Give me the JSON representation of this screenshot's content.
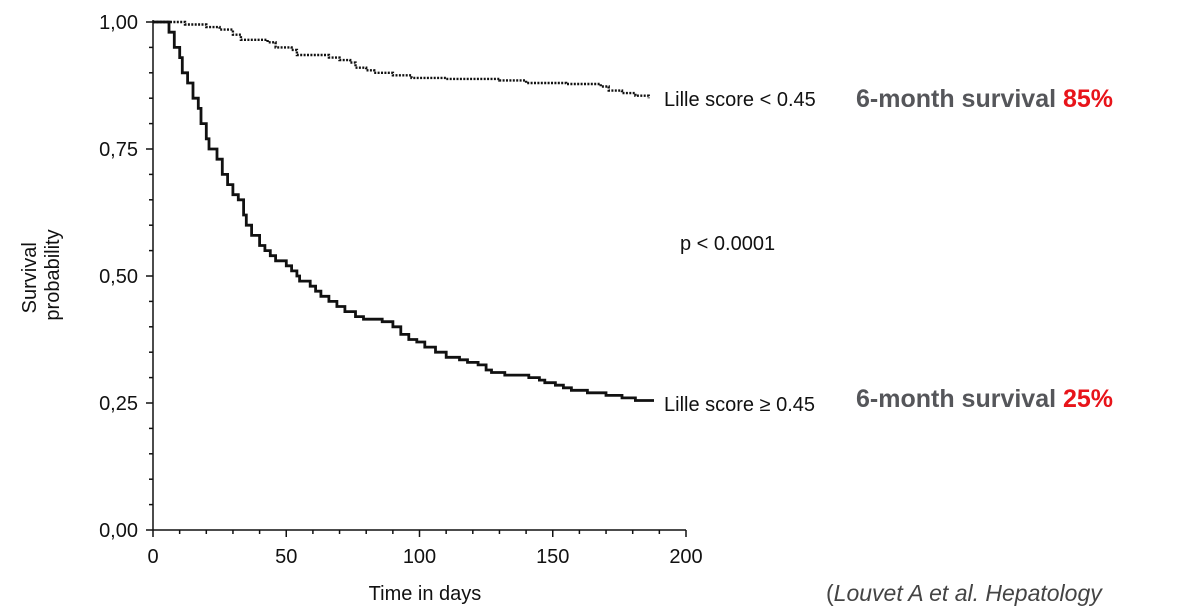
{
  "chart_data": {
    "type": "line",
    "title": "",
    "xlabel": "Time in days",
    "ylabel_lines": [
      "Survival",
      "probability"
    ],
    "xlim": [
      0,
      200
    ],
    "ylim": [
      0,
      1
    ],
    "x_ticks": [
      0,
      50,
      100,
      150,
      200
    ],
    "x_tick_labels": [
      "0",
      "50",
      "100",
      "150",
      "200"
    ],
    "y_ticks": [
      0,
      0.25,
      0.5,
      0.75,
      1.0
    ],
    "y_tick_labels": [
      "0,00",
      "0,25",
      "0,50",
      "0,75",
      "1,00"
    ],
    "grid": false,
    "series": [
      {
        "name": "Lille score < 0.45",
        "style": "dotted",
        "points": [
          [
            0,
            1.0
          ],
          [
            10,
            1.0
          ],
          [
            12,
            0.995
          ],
          [
            20,
            0.99
          ],
          [
            25,
            0.985
          ],
          [
            30,
            0.975
          ],
          [
            33,
            0.965
          ],
          [
            43,
            0.96
          ],
          [
            46,
            0.95
          ],
          [
            52,
            0.945
          ],
          [
            54,
            0.935
          ],
          [
            66,
            0.93
          ],
          [
            70,
            0.925
          ],
          [
            74,
            0.92
          ],
          [
            76,
            0.91
          ],
          [
            80,
            0.905
          ],
          [
            83,
            0.9
          ],
          [
            90,
            0.895
          ],
          [
            97,
            0.89
          ],
          [
            110,
            0.888
          ],
          [
            130,
            0.885
          ],
          [
            140,
            0.88
          ],
          [
            155,
            0.878
          ],
          [
            168,
            0.873
          ],
          [
            171,
            0.865
          ],
          [
            176,
            0.86
          ],
          [
            181,
            0.855
          ],
          [
            186,
            0.85
          ]
        ]
      },
      {
        "name": "Lille score ≥ 0.45",
        "style": "solid",
        "points": [
          [
            0,
            1.0
          ],
          [
            4,
            1.0
          ],
          [
            6,
            0.98
          ],
          [
            8,
            0.95
          ],
          [
            10,
            0.93
          ],
          [
            11,
            0.9
          ],
          [
            13,
            0.88
          ],
          [
            15,
            0.85
          ],
          [
            17,
            0.83
          ],
          [
            18,
            0.8
          ],
          [
            20,
            0.77
          ],
          [
            21,
            0.75
          ],
          [
            24,
            0.73
          ],
          [
            26,
            0.7
          ],
          [
            28,
            0.68
          ],
          [
            30,
            0.66
          ],
          [
            32,
            0.65
          ],
          [
            34,
            0.62
          ],
          [
            35,
            0.6
          ],
          [
            37,
            0.58
          ],
          [
            40,
            0.56
          ],
          [
            42,
            0.55
          ],
          [
            44,
            0.54
          ],
          [
            46,
            0.53
          ],
          [
            50,
            0.52
          ],
          [
            52,
            0.51
          ],
          [
            54,
            0.5
          ],
          [
            55,
            0.49
          ],
          [
            59,
            0.48
          ],
          [
            61,
            0.47
          ],
          [
            63,
            0.46
          ],
          [
            66,
            0.45
          ],
          [
            69,
            0.44
          ],
          [
            72,
            0.43
          ],
          [
            76,
            0.42
          ],
          [
            79,
            0.415
          ],
          [
            86,
            0.41
          ],
          [
            90,
            0.4
          ],
          [
            93,
            0.385
          ],
          [
            96,
            0.375
          ],
          [
            99,
            0.37
          ],
          [
            102,
            0.36
          ],
          [
            106,
            0.35
          ],
          [
            110,
            0.34
          ],
          [
            115,
            0.335
          ],
          [
            118,
            0.33
          ],
          [
            122,
            0.325
          ],
          [
            125,
            0.315
          ],
          [
            127,
            0.31
          ],
          [
            132,
            0.305
          ],
          [
            141,
            0.3
          ],
          [
            145,
            0.295
          ],
          [
            147,
            0.29
          ],
          [
            151,
            0.285
          ],
          [
            154,
            0.28
          ],
          [
            157,
            0.275
          ],
          [
            163,
            0.27
          ],
          [
            170,
            0.265
          ],
          [
            176,
            0.26
          ],
          [
            181,
            0.255
          ],
          [
            188,
            0.255
          ]
        ]
      }
    ],
    "annotations": {
      "p_value": "p < 0.0001"
    }
  },
  "notes": [
    {
      "prefix": "6-month survival ",
      "value": "85%"
    },
    {
      "prefix": "6-month survival ",
      "value": "25%"
    }
  ],
  "citation": {
    "open": "(",
    "text": "Louvet A et al. Hepatology"
  },
  "colors": {
    "axis": "#111111",
    "note_text": "#55565a",
    "note_value": "#e8141a",
    "citation": "#444444"
  }
}
